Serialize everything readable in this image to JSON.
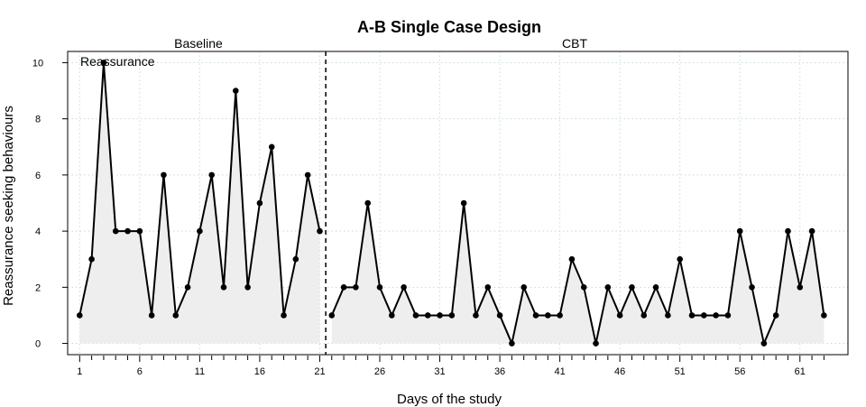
{
  "chart_data": {
    "type": "line",
    "title": "A-B Single Case Design",
    "xlabel": "Days of the study",
    "ylabel": "Reassurance seeking behaviours",
    "annotation": "Reassurance",
    "xlim": [
      0,
      65
    ],
    "ylim": [
      -0.4,
      10.4
    ],
    "x_ticks": [
      1,
      6,
      11,
      16,
      21,
      26,
      31,
      36,
      41,
      46,
      51,
      56,
      61
    ],
    "x_minor_step": 1,
    "y_ticks": [
      0,
      2,
      4,
      6,
      8,
      10
    ],
    "grid": true,
    "phase_change_x": 21.5,
    "phases": [
      {
        "name": "Baseline",
        "x": [
          1,
          2,
          3,
          4,
          5,
          6,
          7,
          8,
          9,
          10,
          11,
          12,
          13,
          14,
          15,
          16,
          17,
          18,
          19,
          20,
          21
        ],
        "y": [
          1,
          3,
          10,
          4,
          4,
          4,
          1,
          6,
          1,
          2,
          4,
          6,
          2,
          9,
          2,
          5,
          7,
          1,
          3,
          6,
          4
        ]
      },
      {
        "name": "CBT",
        "x": [
          22,
          23,
          24,
          25,
          26,
          27,
          28,
          29,
          30,
          31,
          32,
          33,
          34,
          35,
          36,
          37,
          38,
          39,
          40,
          41,
          42,
          43,
          44,
          45,
          46,
          47,
          48,
          49,
          50,
          51,
          52,
          53,
          54,
          55,
          56,
          57,
          58,
          59,
          60,
          61,
          62,
          63
        ],
        "y": [
          1,
          2,
          2,
          5,
          2,
          1,
          2,
          1,
          1,
          1,
          1,
          5,
          1,
          2,
          1,
          0,
          2,
          1,
          1,
          1,
          3,
          2,
          0,
          2,
          1,
          2,
          1,
          2,
          1,
          3,
          1,
          1,
          1,
          1,
          4,
          2,
          0,
          1,
          4,
          2,
          4,
          1
        ]
      }
    ]
  }
}
